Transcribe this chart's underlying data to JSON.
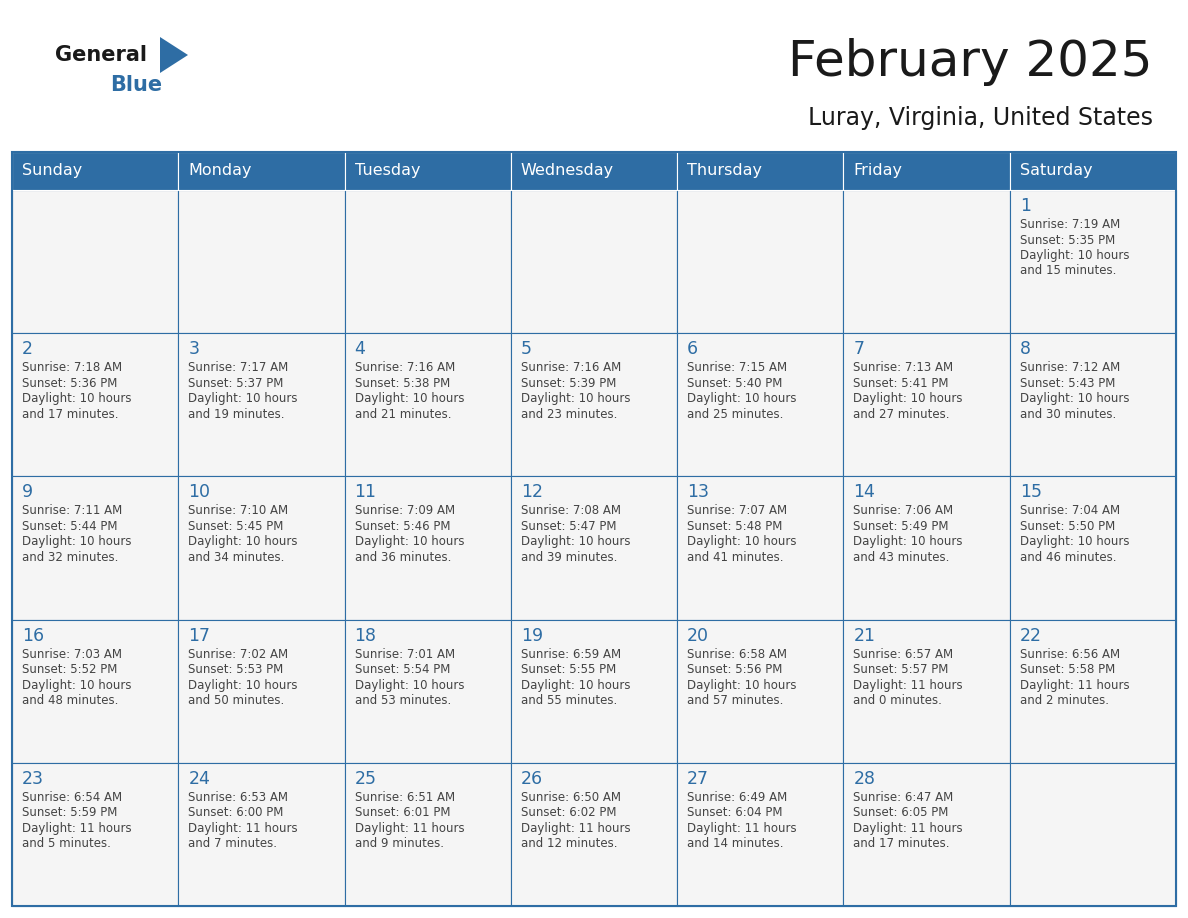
{
  "title": "February 2025",
  "subtitle": "Luray, Virginia, United States",
  "header_bg_color": "#2E6DA4",
  "header_text_color": "#FFFFFF",
  "cell_bg_color": "#F5F5F5",
  "day_number_color": "#2E6DA4",
  "cell_text_color": "#444444",
  "border_color": "#2E6DA4",
  "days_of_week": [
    "Sunday",
    "Monday",
    "Tuesday",
    "Wednesday",
    "Thursday",
    "Friday",
    "Saturday"
  ],
  "weeks": [
    [
      {
        "day": "",
        "info": ""
      },
      {
        "day": "",
        "info": ""
      },
      {
        "day": "",
        "info": ""
      },
      {
        "day": "",
        "info": ""
      },
      {
        "day": "",
        "info": ""
      },
      {
        "day": "",
        "info": ""
      },
      {
        "day": "1",
        "info": "Sunrise: 7:19 AM\nSunset: 5:35 PM\nDaylight: 10 hours\nand 15 minutes."
      }
    ],
    [
      {
        "day": "2",
        "info": "Sunrise: 7:18 AM\nSunset: 5:36 PM\nDaylight: 10 hours\nand 17 minutes."
      },
      {
        "day": "3",
        "info": "Sunrise: 7:17 AM\nSunset: 5:37 PM\nDaylight: 10 hours\nand 19 minutes."
      },
      {
        "day": "4",
        "info": "Sunrise: 7:16 AM\nSunset: 5:38 PM\nDaylight: 10 hours\nand 21 minutes."
      },
      {
        "day": "5",
        "info": "Sunrise: 7:16 AM\nSunset: 5:39 PM\nDaylight: 10 hours\nand 23 minutes."
      },
      {
        "day": "6",
        "info": "Sunrise: 7:15 AM\nSunset: 5:40 PM\nDaylight: 10 hours\nand 25 minutes."
      },
      {
        "day": "7",
        "info": "Sunrise: 7:13 AM\nSunset: 5:41 PM\nDaylight: 10 hours\nand 27 minutes."
      },
      {
        "day": "8",
        "info": "Sunrise: 7:12 AM\nSunset: 5:43 PM\nDaylight: 10 hours\nand 30 minutes."
      }
    ],
    [
      {
        "day": "9",
        "info": "Sunrise: 7:11 AM\nSunset: 5:44 PM\nDaylight: 10 hours\nand 32 minutes."
      },
      {
        "day": "10",
        "info": "Sunrise: 7:10 AM\nSunset: 5:45 PM\nDaylight: 10 hours\nand 34 minutes."
      },
      {
        "day": "11",
        "info": "Sunrise: 7:09 AM\nSunset: 5:46 PM\nDaylight: 10 hours\nand 36 minutes."
      },
      {
        "day": "12",
        "info": "Sunrise: 7:08 AM\nSunset: 5:47 PM\nDaylight: 10 hours\nand 39 minutes."
      },
      {
        "day": "13",
        "info": "Sunrise: 7:07 AM\nSunset: 5:48 PM\nDaylight: 10 hours\nand 41 minutes."
      },
      {
        "day": "14",
        "info": "Sunrise: 7:06 AM\nSunset: 5:49 PM\nDaylight: 10 hours\nand 43 minutes."
      },
      {
        "day": "15",
        "info": "Sunrise: 7:04 AM\nSunset: 5:50 PM\nDaylight: 10 hours\nand 46 minutes."
      }
    ],
    [
      {
        "day": "16",
        "info": "Sunrise: 7:03 AM\nSunset: 5:52 PM\nDaylight: 10 hours\nand 48 minutes."
      },
      {
        "day": "17",
        "info": "Sunrise: 7:02 AM\nSunset: 5:53 PM\nDaylight: 10 hours\nand 50 minutes."
      },
      {
        "day": "18",
        "info": "Sunrise: 7:01 AM\nSunset: 5:54 PM\nDaylight: 10 hours\nand 53 minutes."
      },
      {
        "day": "19",
        "info": "Sunrise: 6:59 AM\nSunset: 5:55 PM\nDaylight: 10 hours\nand 55 minutes."
      },
      {
        "day": "20",
        "info": "Sunrise: 6:58 AM\nSunset: 5:56 PM\nDaylight: 10 hours\nand 57 minutes."
      },
      {
        "day": "21",
        "info": "Sunrise: 6:57 AM\nSunset: 5:57 PM\nDaylight: 11 hours\nand 0 minutes."
      },
      {
        "day": "22",
        "info": "Sunrise: 6:56 AM\nSunset: 5:58 PM\nDaylight: 11 hours\nand 2 minutes."
      }
    ],
    [
      {
        "day": "23",
        "info": "Sunrise: 6:54 AM\nSunset: 5:59 PM\nDaylight: 11 hours\nand 5 minutes."
      },
      {
        "day": "24",
        "info": "Sunrise: 6:53 AM\nSunset: 6:00 PM\nDaylight: 11 hours\nand 7 minutes."
      },
      {
        "day": "25",
        "info": "Sunrise: 6:51 AM\nSunset: 6:01 PM\nDaylight: 11 hours\nand 9 minutes."
      },
      {
        "day": "26",
        "info": "Sunrise: 6:50 AM\nSunset: 6:02 PM\nDaylight: 11 hours\nand 12 minutes."
      },
      {
        "day": "27",
        "info": "Sunrise: 6:49 AM\nSunset: 6:04 PM\nDaylight: 11 hours\nand 14 minutes."
      },
      {
        "day": "28",
        "info": "Sunrise: 6:47 AM\nSunset: 6:05 PM\nDaylight: 11 hours\nand 17 minutes."
      },
      {
        "day": "",
        "info": ""
      }
    ]
  ]
}
